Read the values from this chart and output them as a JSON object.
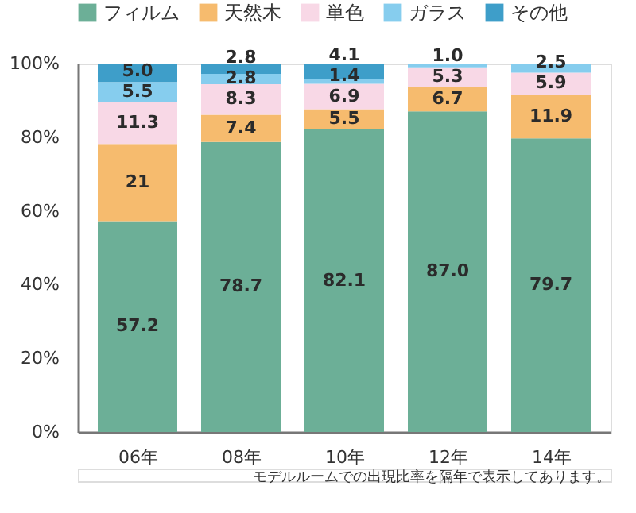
{
  "chart_data": {
    "type": "bar",
    "stacked": true,
    "legend": "top",
    "categories": [
      "06年",
      "08年",
      "10年",
      "12年",
      "14年"
    ],
    "series": [
      {
        "name": "フィルム",
        "color": "#6caf97",
        "values": [
          57.2,
          78.7,
          82.1,
          87.0,
          79.7
        ],
        "value_labels": [
          "57.2",
          "78.7",
          "82.1",
          "87.0",
          "79.7"
        ]
      },
      {
        "name": "天然木",
        "color": "#f6bb6e",
        "values": [
          21,
          7.4,
          5.5,
          6.7,
          11.9
        ],
        "value_labels": [
          "21",
          "7.4",
          "5.5",
          "6.7",
          "11.9"
        ]
      },
      {
        "name": "単色",
        "color": "#f8d8e6",
        "values": [
          11.3,
          8.3,
          6.9,
          5.3,
          5.9
        ],
        "value_labels": [
          "11.3",
          "8.3",
          "6.9",
          "5.3",
          "5.9"
        ]
      },
      {
        "name": "ガラス",
        "color": "#86cdee",
        "values": [
          5.5,
          2.8,
          1.4,
          1.0,
          2.5
        ],
        "value_labels": [
          "5.5",
          "2.8",
          "1.4",
          "1.0",
          "2.5"
        ]
      },
      {
        "name": "その他",
        "color": "#3e9ec9",
        "values": [
          5.0,
          2.8,
          4.1,
          null,
          null
        ],
        "value_labels": [
          "5.0",
          "2.8",
          "4.1",
          null,
          null
        ]
      }
    ],
    "ylim": [
      0,
      100
    ],
    "yticks": [
      {
        "value": 0,
        "label": "0%"
      },
      {
        "value": 20,
        "label": "20%"
      },
      {
        "value": 40,
        "label": "40%"
      },
      {
        "value": 60,
        "label": "60%"
      },
      {
        "value": 80,
        "label": "80%"
      },
      {
        "value": 100,
        "label": "100%"
      }
    ],
    "grid": false,
    "annotations": [
      "モデルルームでの出現比率を隔年で表示してあります。"
    ]
  }
}
